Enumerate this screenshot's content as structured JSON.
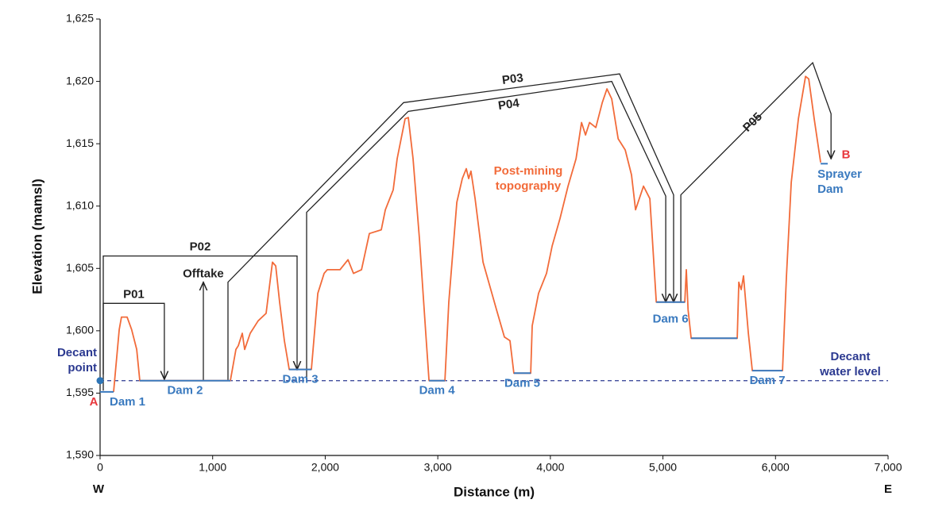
{
  "chart_data": {
    "type": "line",
    "xlabel": "Distance (m)",
    "ylabel": "Elevation (mamsl)",
    "xlim": [
      0,
      7000
    ],
    "ylim": [
      1590,
      1625
    ],
    "xticks": [
      0,
      {
        "value": 1000,
        "label": "1,000"
      },
      {
        "value": 2000,
        "label": "2,000"
      },
      {
        "value": 3000,
        "label": "3,000"
      },
      {
        "value": 4000,
        "label": "4,000"
      },
      {
        "value": 5000,
        "label": "5,000"
      },
      {
        "value": 6000,
        "label": "6,000"
      },
      {
        "value": 7000,
        "label": "7,000"
      }
    ],
    "yticks": [
      {
        "value": 1590,
        "label": "1,590"
      },
      {
        "value": 1595,
        "label": "1,595"
      },
      {
        "value": 1600,
        "label": "1,600"
      },
      {
        "value": 1605,
        "label": "1,605"
      },
      {
        "value": 1610,
        "label": "1,610"
      },
      {
        "value": 1615,
        "label": "1,615"
      },
      {
        "value": 1620,
        "label": "1,620"
      },
      {
        "value": 1625,
        "label": "1,625"
      }
    ],
    "series": [
      {
        "name": "Post-mining topography",
        "color": "#f26b3a",
        "x": [
          120,
          170,
          190,
          240,
          280,
          325,
          353,
          1157,
          1207,
          1228,
          1263,
          1284,
          1334,
          1404,
          1475,
          1531,
          1560,
          1595,
          1637,
          1680,
          1877,
          1934,
          1990,
          2018,
          2131,
          2202,
          2251,
          2322,
          2392,
          2498,
          2534,
          2604,
          2639,
          2710,
          2738,
          2780,
          2837,
          2893,
          2922,
          3063,
          3098,
          3169,
          3218,
          3253,
          3274,
          3295,
          3331,
          3402,
          3521,
          3592,
          3641,
          3676,
          3825,
          3839,
          3895,
          3966,
          4016,
          4086,
          4157,
          4228,
          4277,
          4312,
          4348,
          4404,
          4461,
          4503,
          4545,
          4602,
          4665,
          4721,
          4757,
          4827,
          4884,
          4941,
          5194,
          5208,
          5223,
          5251,
          5660,
          5674,
          5695,
          5716,
          5759,
          5794,
          6062,
          6097,
          6140,
          6203,
          6267,
          6295,
          6344,
          6401
        ],
        "values": [
          1595.1,
          1600.1,
          1601.1,
          1601.1,
          1600.1,
          1598.5,
          1596,
          1596,
          1598.5,
          1598.8,
          1599.8,
          1598.5,
          1599.8,
          1600.8,
          1601.4,
          1605.5,
          1605.2,
          1602.3,
          1599.2,
          1596.9,
          1596.9,
          1603,
          1604.6,
          1604.9,
          1604.9,
          1605.7,
          1604.6,
          1604.9,
          1607.8,
          1608.1,
          1609.7,
          1611.3,
          1613.8,
          1617,
          1617.1,
          1613.8,
          1607.4,
          1599.8,
          1596,
          1596,
          1602.3,
          1610.3,
          1612.2,
          1613,
          1612.2,
          1612.8,
          1610.6,
          1605.5,
          1601.7,
          1599.5,
          1599.2,
          1596.6,
          1596.6,
          1600.4,
          1603,
          1604.6,
          1606.8,
          1609,
          1611.6,
          1613.8,
          1616.7,
          1615.7,
          1616.7,
          1616.3,
          1618.3,
          1619.4,
          1618.6,
          1615.4,
          1614.5,
          1612.5,
          1609.7,
          1611.6,
          1610.6,
          1602.3,
          1602.3,
          1604.9,
          1601.7,
          1599.4,
          1599.4,
          1603.9,
          1603.3,
          1604.4,
          1599.8,
          1596.8,
          1596.8,
          1604.3,
          1611.9,
          1617,
          1620.4,
          1620.2,
          1617,
          1613.5
        ]
      }
    ],
    "dam_color": "#3a7abf",
    "dams": [
      {
        "name": "Dam 1",
        "x": [
          0,
          120
        ],
        "values": [
          1595.1,
          1595.1
        ]
      },
      {
        "name": "Dam 2",
        "x": [
          353,
          1157
        ],
        "values": [
          1596,
          1596
        ]
      },
      {
        "name": "Dam 3",
        "x": [
          1680,
          1877
        ],
        "values": [
          1596.9,
          1596.9
        ]
      },
      {
        "name": "Dam 4",
        "x": [
          2922,
          3063
        ],
        "values": [
          1596,
          1596
        ]
      },
      {
        "name": "Dam 5",
        "x": [
          3676,
          3825
        ],
        "values": [
          1596.6,
          1596.6
        ]
      },
      {
        "name": "Dam 6",
        "x": [
          4941,
          5194
        ],
        "values": [
          1602.3,
          1602.3
        ]
      },
      {
        "name": null,
        "x": [
          5251,
          5660
        ],
        "values": [
          1599.4,
          1599.4
        ]
      },
      {
        "name": "Dam 7",
        "x": [
          5794,
          6062
        ],
        "values": [
          1596.8,
          1596.8
        ]
      },
      {
        "name": "Sprayer Dam",
        "x": [
          6401,
          6464
        ],
        "values": [
          1613.4,
          1613.4
        ]
      }
    ],
    "pipe_color": "#222222",
    "pipelines": [
      {
        "name": "P01",
        "x": [
          28,
          28,
          571,
          571
        ],
        "values": [
          1596.5,
          1602.2,
          1602.2,
          1596.1
        ]
      },
      {
        "name": "P02",
        "x": [
          28,
          28,
          1750,
          1750
        ],
        "values": [
          1595.2,
          1606,
          1606,
          1596.9
        ]
      },
      {
        "name": "P03",
        "x": [
          1136,
          1136,
          2696,
          4615,
          5095,
          5095
        ],
        "values": [
          1596,
          1603.9,
          1618.3,
          1620.6,
          1610.9,
          1602.3
        ]
      },
      {
        "name": "P04",
        "x": [
          1835,
          1835,
          2738,
          4545,
          5025,
          5025
        ],
        "values": [
          1596,
          1609.5,
          1617.6,
          1620,
          1610.8,
          1602.3
        ]
      },
      {
        "name": "P05",
        "x": [
          5159,
          5159,
          6330,
          6493,
          6493
        ],
        "values": [
          1602.3,
          1610.9,
          1621.5,
          1617.4,
          1613.8
        ]
      }
    ],
    "offtake": {
      "name": "Offtake",
      "x": [
        917,
        917
      ],
      "values": [
        1596,
        1603.9
      ]
    },
    "decant_water_level": {
      "name": "Decant water level",
      "value": 1596,
      "color": "#2b3990"
    },
    "decant_point": {
      "name": "Decant point",
      "x": 0,
      "value": 1596,
      "color": "#2e75b6"
    },
    "section_ends": {
      "start": "A",
      "end": "B",
      "color": "#e8383d"
    },
    "directions": {
      "left": "W",
      "right": "E"
    }
  }
}
